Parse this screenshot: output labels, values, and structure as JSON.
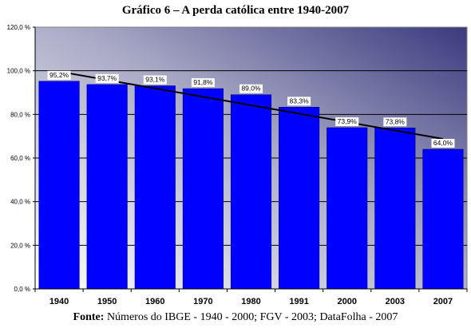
{
  "chart_data": {
    "type": "bar",
    "title": "Gráfico 6 – A perda católica entre 1940-2007",
    "categories": [
      "1940",
      "1950",
      "1960",
      "1970",
      "1980",
      "1991",
      "2000",
      "2003",
      "2007"
    ],
    "values": [
      95.2,
      93.7,
      93.1,
      91.8,
      89.0,
      83.3,
      73.9,
      73.8,
      64.0
    ],
    "data_labels": [
      "95,2%",
      "93,7%",
      "93,1%",
      "91,8%",
      "89,0%",
      "83,3%",
      "73,9%",
      "73,8%",
      "64,0%"
    ],
    "ylim": [
      0,
      120
    ],
    "yticks": [
      0,
      20,
      40,
      60,
      80,
      100,
      120
    ],
    "ytick_labels": [
      "0,0 %",
      "20,0 %",
      "40,0 %",
      "60,0 %",
      "80,0 %",
      "100,0 %",
      "120,0 %"
    ],
    "xlabel": "",
    "ylabel": "",
    "grid": true,
    "trendline": true,
    "legend": "none",
    "colors": {
      "bar": "#0000FF",
      "bar_edge": "#000080",
      "plot_bg_light": "#FFFFFF",
      "plot_bg_dark": "#3A3A7E",
      "trendline": "#000000"
    }
  },
  "source": {
    "label": "Fonte:",
    "text": " Números do IBGE - 1940 - 2000; FGV - 2003; DataFolha - 2007"
  }
}
